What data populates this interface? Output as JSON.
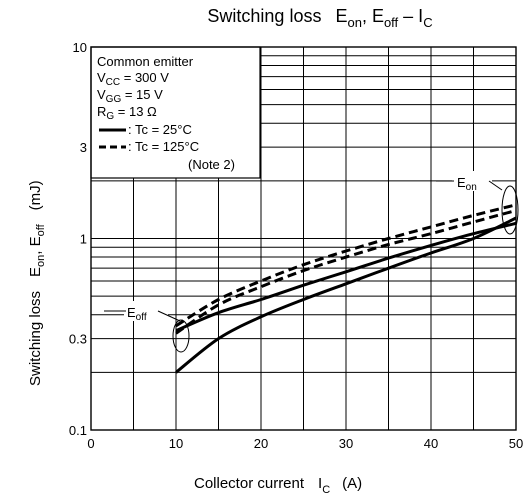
{
  "chart_data": {
    "type": "line",
    "title": {
      "main": "Switching loss",
      "params": "E",
      "on": "on",
      "sep1": ", E",
      "off": "off",
      "sep2": " – I",
      "c": "C"
    },
    "xlabel": {
      "main": "Collector current",
      "sym": "I",
      "sub": "C",
      "unit": "(A)"
    },
    "ylabel": {
      "main": "Switching loss",
      "e1": "E",
      "on": "on",
      "sep": ", E",
      "off": "off",
      "unit": "(mJ)"
    },
    "x_scale": "linear",
    "y_scale": "log",
    "xlim": [
      0,
      50
    ],
    "ylim": [
      0.1,
      10
    ],
    "x_ticks": [
      0,
      10,
      20,
      30,
      40,
      50
    ],
    "x_tick_labels": [
      "0",
      "10",
      "20",
      "30",
      "40",
      "50"
    ],
    "y_ticks": [
      0.1,
      0.3,
      1,
      3,
      10
    ],
    "y_tick_labels": [
      "0.1",
      "0.3",
      "1",
      "3",
      "10"
    ],
    "grid": true,
    "legend_box": {
      "lines": [
        {
          "text": "Common emitter"
        },
        {
          "pre": "V",
          "sub": "CC",
          "post": " = 300 V"
        },
        {
          "pre": "V",
          "sub": "GG",
          "post": " = 15 V"
        },
        {
          "pre": "R",
          "sub": "G",
          "post": " = 13 Ω"
        }
      ],
      "entries": [
        {
          "style": "solid",
          "label": ": Tc = 25°C"
        },
        {
          "style": "dashed",
          "label": ": Tc = 125°C"
        }
      ],
      "note": "(Note 2)"
    },
    "annotations": [
      {
        "pre": "E",
        "sub": "on"
      },
      {
        "pre": "E",
        "sub": "off"
      }
    ],
    "series": [
      {
        "group": "Eon",
        "style": "solid",
        "x": [
          10,
          15,
          20,
          25,
          30,
          35,
          40,
          45,
          50
        ],
        "y": [
          0.33,
          0.41,
          0.48,
          0.57,
          0.67,
          0.79,
          0.92,
          1.06,
          1.2
        ]
      },
      {
        "group": "Eon",
        "style": "dashed",
        "x": [
          10,
          15,
          20,
          25,
          30,
          35,
          40,
          45,
          50
        ],
        "y": [
          0.35,
          0.48,
          0.6,
          0.73,
          0.86,
          1.0,
          1.15,
          1.32,
          1.5
        ]
      },
      {
        "group": "Eoff",
        "style": "solid",
        "x": [
          10,
          15,
          20,
          25,
          30,
          35,
          40,
          45,
          50
        ],
        "y": [
          0.2,
          0.3,
          0.39,
          0.48,
          0.58,
          0.7,
          0.84,
          1.0,
          1.28
        ]
      },
      {
        "group": "Eoff",
        "style": "dashed",
        "x": [
          10,
          15,
          20,
          25,
          30,
          35,
          40,
          45,
          50
        ],
        "y": [
          0.32,
          0.45,
          0.56,
          0.68,
          0.8,
          0.93,
          1.06,
          1.22,
          1.4
        ]
      }
    ]
  }
}
